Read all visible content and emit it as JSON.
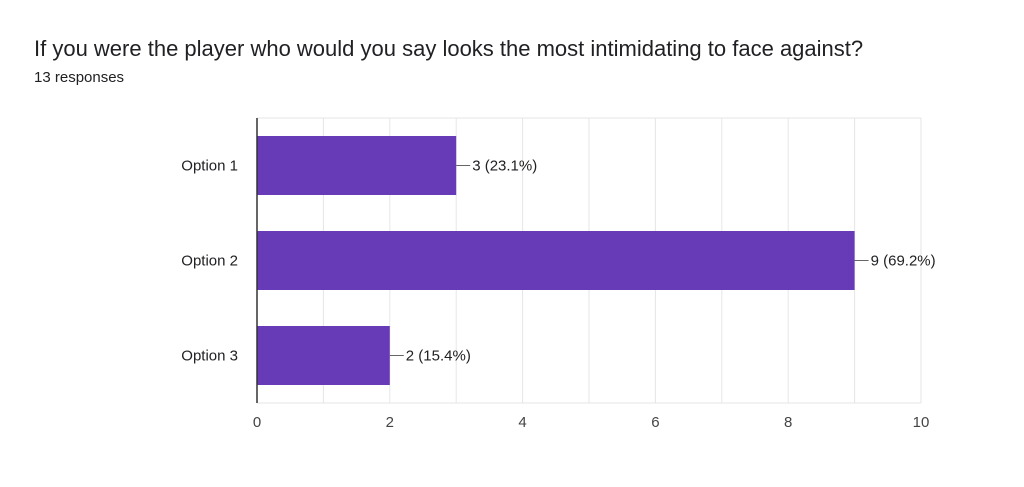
{
  "question": {
    "title": "If you were the player who would you say looks the most intimidating to face against?",
    "responses": "13 responses"
  },
  "colors": {
    "bar": "#673ab7",
    "grid": "#e6e6e6",
    "axis": "#333333",
    "text": "#202124",
    "tick": "#444444"
  },
  "chart_data": {
    "type": "bar",
    "orientation": "horizontal",
    "categories": [
      "Option 1",
      "Option 2",
      "Option 3"
    ],
    "values": [
      3,
      9,
      2
    ],
    "data_labels": [
      "3 (23.1%)",
      "9 (69.2%)",
      "2 (15.4%)"
    ],
    "xlim": [
      0,
      10
    ],
    "xticks": [
      0,
      2,
      4,
      6,
      8,
      10
    ],
    "grid": true,
    "legend": "none"
  }
}
